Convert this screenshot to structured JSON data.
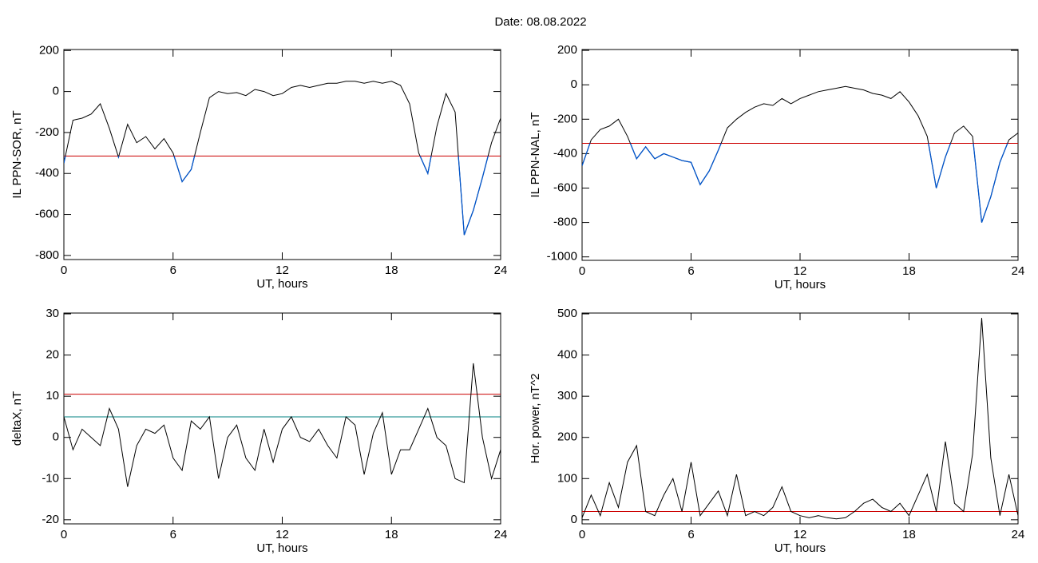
{
  "title": "Date:  08.08.2022",
  "chart_data": [
    {
      "type": "line",
      "xlabel": "UT, hours",
      "ylabel": "IL PPN-SOR, nT",
      "x": [
        0,
        0.5,
        1,
        1.5,
        2,
        2.5,
        3,
        3.5,
        4,
        4.5,
        5,
        5.5,
        6,
        6.5,
        7,
        7.5,
        8,
        8.5,
        9,
        9.5,
        10,
        10.5,
        11,
        11.5,
        12,
        12.5,
        13,
        13.5,
        14,
        14.5,
        15,
        15.5,
        16,
        16.5,
        17,
        17.5,
        18,
        18.5,
        19,
        19.5,
        20,
        20.5,
        21,
        21.5,
        22,
        22.5,
        23,
        23.5,
        24
      ],
      "series": [
        {
          "name": "IL PPN-SOR",
          "color": "#000000",
          "below_color": "#0055cc",
          "values": [
            -350,
            -140,
            -130,
            -110,
            -60,
            -180,
            -320,
            -160,
            -250,
            -220,
            -280,
            -230,
            -300,
            -440,
            -380,
            -200,
            -30,
            0,
            -10,
            -5,
            -20,
            10,
            0,
            -20,
            -10,
            20,
            30,
            20,
            30,
            40,
            40,
            50,
            50,
            40,
            50,
            40,
            50,
            30,
            -60,
            -300,
            -400,
            -170,
            -10,
            -100,
            -700,
            -580,
            -420,
            -250,
            -130
          ]
        }
      ],
      "threshold": {
        "value": -315,
        "color": "#cc0000"
      },
      "xlim": [
        0,
        24
      ],
      "xticks": [
        0,
        6,
        12,
        18,
        24
      ],
      "ylim": [
        -820,
        205
      ],
      "yticks": [
        -800,
        -600,
        -400,
        -200,
        0,
        200
      ]
    },
    {
      "type": "line",
      "xlabel": "UT, hours",
      "ylabel": "IL PPN-NAL, nT",
      "x": [
        0,
        0.5,
        1,
        1.5,
        2,
        2.5,
        3,
        3.5,
        4,
        4.5,
        5,
        5.5,
        6,
        6.5,
        7,
        7.5,
        8,
        8.5,
        9,
        9.5,
        10,
        10.5,
        11,
        11.5,
        12,
        12.5,
        13,
        13.5,
        14,
        14.5,
        15,
        15.5,
        16,
        16.5,
        17,
        17.5,
        18,
        18.5,
        19,
        19.5,
        20,
        20.5,
        21,
        21.5,
        22,
        22.5,
        23,
        23.5,
        24
      ],
      "series": [
        {
          "name": "IL PPN-NAL",
          "color": "#000000",
          "below_color": "#0055cc",
          "values": [
            -470,
            -320,
            -260,
            -240,
            -200,
            -300,
            -430,
            -360,
            -430,
            -400,
            -420,
            -440,
            -450,
            -580,
            -500,
            -380,
            -250,
            -200,
            -160,
            -130,
            -110,
            -120,
            -80,
            -110,
            -80,
            -60,
            -40,
            -30,
            -20,
            -10,
            -20,
            -30,
            -50,
            -60,
            -80,
            -40,
            -100,
            -180,
            -300,
            -600,
            -420,
            -280,
            -240,
            -300,
            -800,
            -650,
            -450,
            -320,
            -280
          ]
        }
      ],
      "threshold": {
        "value": -340,
        "color": "#cc0000"
      },
      "xlim": [
        0,
        24
      ],
      "xticks": [
        0,
        6,
        12,
        18,
        24
      ],
      "ylim": [
        -1020,
        205
      ],
      "yticks": [
        -1000,
        -800,
        -600,
        -400,
        -200,
        0,
        200
      ]
    },
    {
      "type": "line",
      "xlabel": "UT, hours",
      "ylabel": "deltaX, nT",
      "x": [
        0,
        0.5,
        1,
        1.5,
        2,
        2.5,
        3,
        3.5,
        4,
        4.5,
        5,
        5.5,
        6,
        6.5,
        7,
        7.5,
        8,
        8.5,
        9,
        9.5,
        10,
        10.5,
        11,
        11.5,
        12,
        12.5,
        13,
        13.5,
        14,
        14.5,
        15,
        15.5,
        16,
        16.5,
        17,
        17.5,
        18,
        18.5,
        19,
        19.5,
        20,
        20.5,
        21,
        21.5,
        22,
        22.5,
        23,
        23.5,
        24
      ],
      "series": [
        {
          "name": "deltaX",
          "color": "#000000",
          "values": [
            5,
            -3,
            2,
            0,
            -2,
            7,
            2,
            -12,
            -2,
            2,
            1,
            3,
            -5,
            -8,
            4,
            2,
            5,
            -10,
            0,
            3,
            -5,
            -8,
            2,
            -6,
            2,
            5,
            0,
            -1,
            2,
            -2,
            -5,
            5,
            3,
            -9,
            1,
            6,
            -9,
            -3,
            -3,
            2,
            7,
            0,
            -2,
            -10,
            -11,
            18,
            0,
            -10,
            -3
          ]
        }
      ],
      "thresholds": [
        {
          "value": 10.5,
          "color": "#cc0000"
        },
        {
          "value": 5,
          "color": "#008080"
        }
      ],
      "xlim": [
        0,
        24
      ],
      "xticks": [
        0,
        6,
        12,
        18,
        24
      ],
      "ylim": [
        -21,
        30.2
      ],
      "yticks": [
        -20,
        -10,
        0,
        10,
        20,
        30
      ]
    },
    {
      "type": "line",
      "xlabel": "UT, hours",
      "ylabel": "Hor. power, nT^2",
      "x": [
        0,
        0.5,
        1,
        1.5,
        2,
        2.5,
        3,
        3.5,
        4,
        4.5,
        5,
        5.5,
        6,
        6.5,
        7,
        7.5,
        8,
        8.5,
        9,
        9.5,
        10,
        10.5,
        11,
        11.5,
        12,
        12.5,
        13,
        13.5,
        14,
        14.5,
        15,
        15.5,
        16,
        16.5,
        17,
        17.5,
        18,
        18.5,
        19,
        19.5,
        20,
        20.5,
        21,
        21.5,
        22,
        22.5,
        23,
        23.5,
        24
      ],
      "series": [
        {
          "name": "Hor. power",
          "color": "#000000",
          "values": [
            5,
            60,
            10,
            90,
            30,
            140,
            180,
            20,
            10,
            60,
            100,
            20,
            140,
            10,
            40,
            70,
            10,
            110,
            10,
            20,
            10,
            30,
            80,
            20,
            10,
            5,
            10,
            5,
            2,
            5,
            20,
            40,
            50,
            30,
            20,
            40,
            10,
            60,
            110,
            20,
            190,
            40,
            20,
            160,
            490,
            150,
            10,
            110,
            10
          ]
        }
      ],
      "threshold": {
        "value": 20,
        "color": "#cc0000"
      },
      "xlim": [
        0,
        24
      ],
      "xticks": [
        0,
        6,
        12,
        18,
        24
      ],
      "ylim": [
        -10,
        502
      ],
      "yticks": [
        0,
        100,
        200,
        300,
        400,
        500
      ]
    }
  ]
}
